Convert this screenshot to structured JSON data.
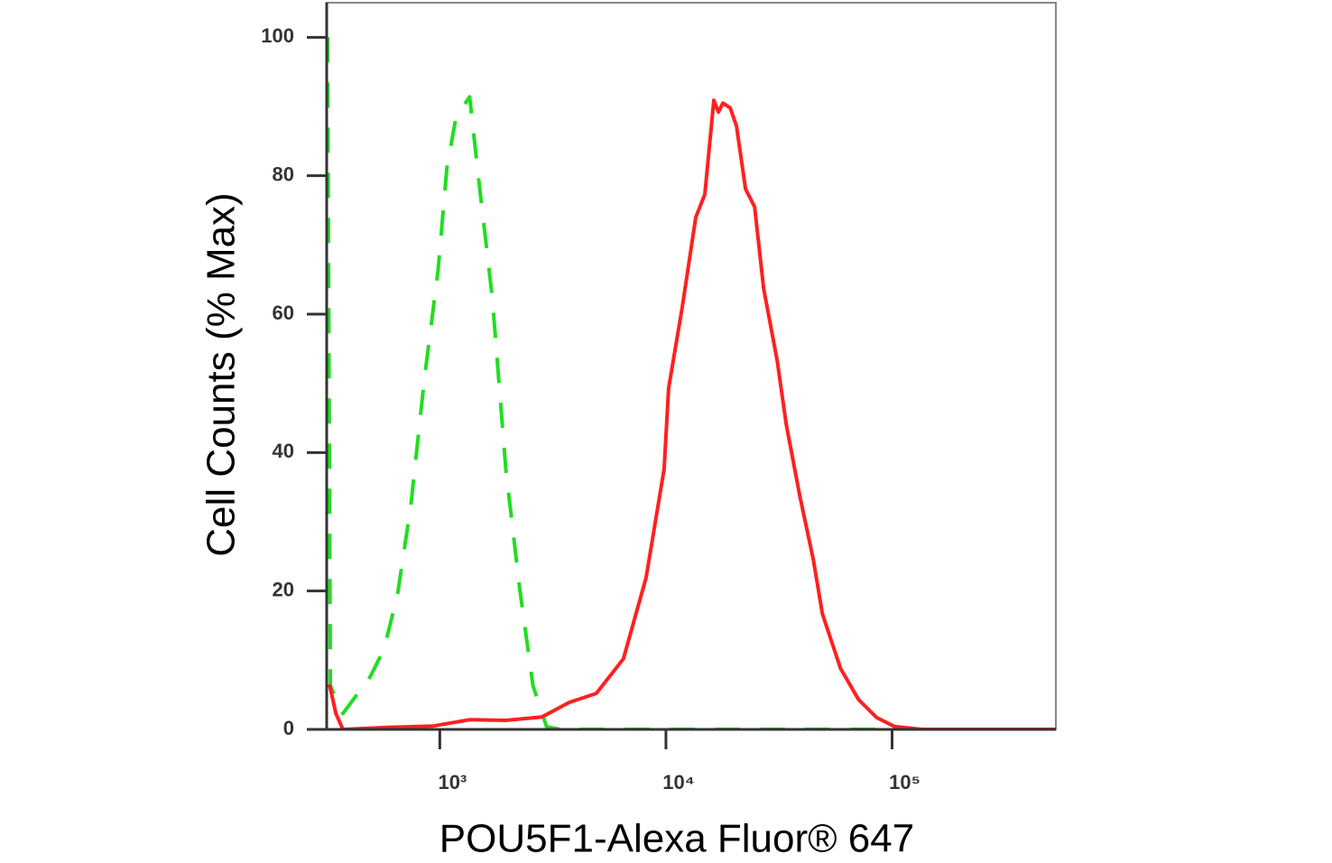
{
  "chart_data": {
    "type": "line",
    "x_label": "POU5F1-Alexa Fluor® 647",
    "y_label": "Cell Counts (% Max)",
    "xscale": "log",
    "xlim": [
      316,
      530000
    ],
    "ylim": [
      0,
      105
    ],
    "xticks": [
      {
        "value": 1000,
        "label": "10³"
      },
      {
        "value": 10000,
        "label": "10⁴"
      },
      {
        "value": 100000,
        "label": "10⁵"
      }
    ],
    "yticks": [
      0,
      20,
      40,
      60,
      80,
      100
    ],
    "series": [
      {
        "color": "#22dd22",
        "dashed": true,
        "x": [
          319,
          328,
          373,
          492,
          565,
          649,
          745,
          855,
          982,
          1076,
          1180,
          1355,
          1486,
          1706,
          1959,
          2249,
          2582,
          2965,
          3404,
          530000
        ],
        "values": [
          100,
          6.3,
          2.3,
          7.6,
          11.5,
          19.3,
          32.4,
          50.7,
          66.3,
          81.3,
          88.5,
          91.4,
          79.4,
          62.4,
          37.6,
          20.6,
          6.3,
          0.4,
          0,
          0
        ]
      },
      {
        "color": "#ff2020",
        "dashed": false,
        "x": [
          325,
          347,
          373,
          592,
          938,
          1355,
          1959,
          2831,
          3733,
          4920,
          6486,
          8166,
          9817,
          10280,
          11800,
          13550,
          14860,
          16290,
          17060,
          17860,
          19230,
          20510,
          22490,
          24660,
          27040,
          31050,
          34040,
          39080,
          44870,
          49200,
          59160,
          71120,
          85510,
          102800,
          135500,
          530000
        ],
        "values": [
          6.5,
          2.3,
          0,
          0.3,
          0.5,
          1.4,
          1.3,
          1.8,
          3.9,
          5.2,
          10.2,
          21.9,
          37.6,
          49.3,
          61.0,
          74.0,
          77.3,
          90.9,
          89.2,
          90.5,
          89.8,
          87.2,
          78.1,
          75.5,
          63.7,
          53.3,
          44.1,
          33.7,
          24.5,
          16.7,
          8.8,
          4.3,
          1.7,
          0.4,
          0,
          0
        ]
      }
    ]
  }
}
